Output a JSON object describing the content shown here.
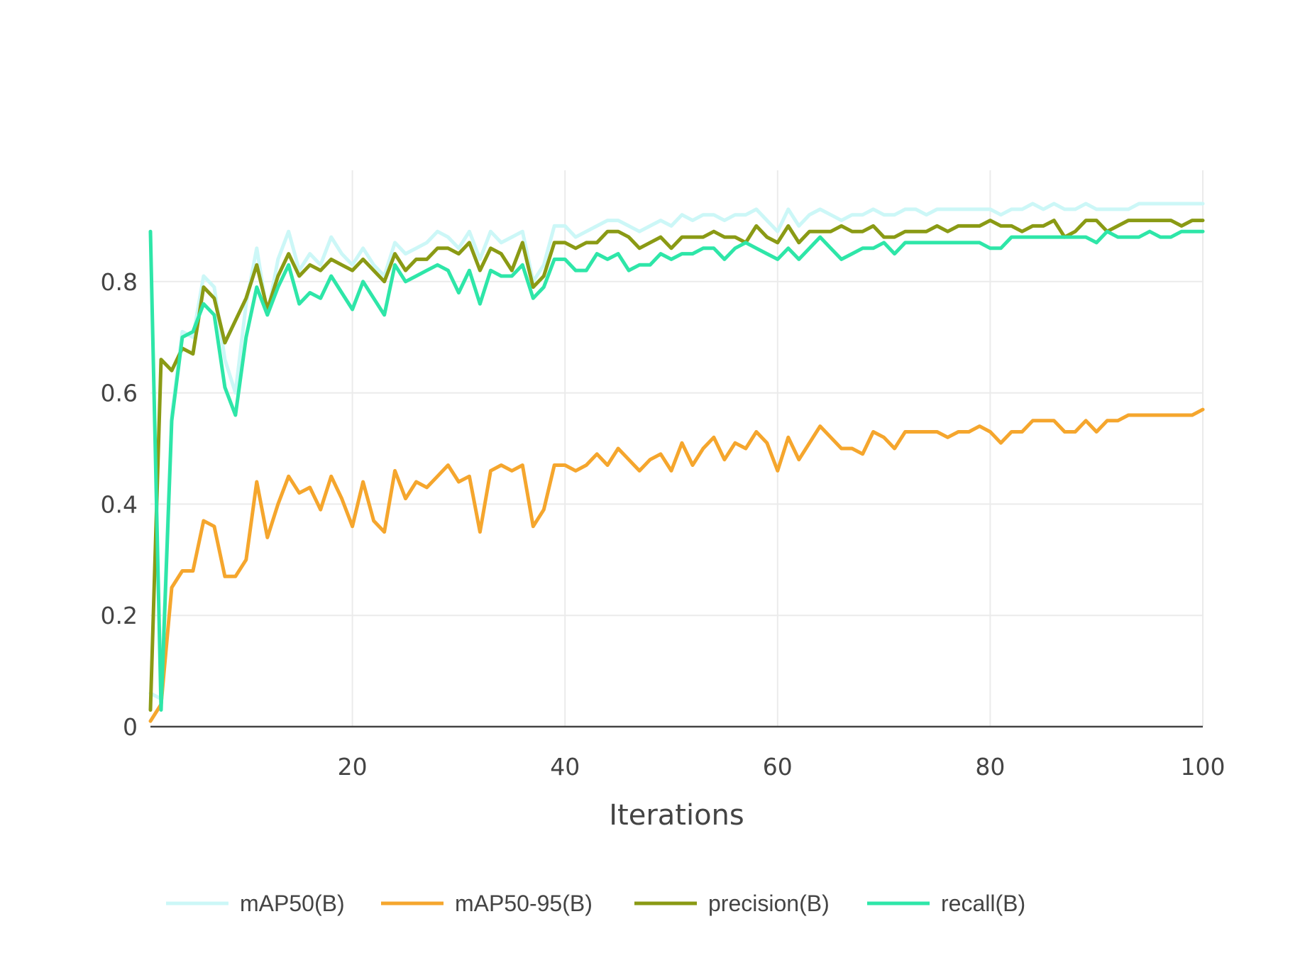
{
  "chart_data": {
    "type": "line",
    "title": "",
    "xlabel": "Iterations",
    "ylabel": "",
    "xlim": [
      1,
      100
    ],
    "ylim": [
      0,
      1.0
    ],
    "x_ticks": [
      20,
      40,
      60,
      80,
      100
    ],
    "y_ticks": [
      0,
      0.2,
      0.4,
      0.6,
      0.8
    ],
    "y_tick_labels": [
      "0",
      "0.2",
      "0.4",
      "0.6",
      "0.8"
    ],
    "x_tick_labels": [
      "20",
      "40",
      "60",
      "80",
      "100"
    ],
    "grid": true,
    "legend_position": "bottom",
    "x": [
      1,
      2,
      3,
      4,
      5,
      6,
      7,
      8,
      9,
      10,
      11,
      12,
      13,
      14,
      15,
      16,
      17,
      18,
      19,
      20,
      21,
      22,
      23,
      24,
      25,
      26,
      27,
      28,
      29,
      30,
      31,
      32,
      33,
      34,
      35,
      36,
      37,
      38,
      39,
      40,
      41,
      42,
      43,
      44,
      45,
      46,
      47,
      48,
      49,
      50,
      51,
      52,
      53,
      54,
      55,
      56,
      57,
      58,
      59,
      60,
      61,
      62,
      63,
      64,
      65,
      66,
      67,
      68,
      69,
      70,
      71,
      72,
      73,
      74,
      75,
      76,
      77,
      78,
      79,
      80,
      81,
      82,
      83,
      84,
      85,
      86,
      87,
      88,
      89,
      90,
      91,
      92,
      93,
      94,
      95,
      96,
      97,
      98,
      99,
      100
    ],
    "series": [
      {
        "name": "mAP50(B)",
        "color": "#ccf7f7",
        "values": [
          0.06,
          0.05,
          0.56,
          0.71,
          0.7,
          0.81,
          0.79,
          0.66,
          0.6,
          0.76,
          0.86,
          0.74,
          0.84,
          0.89,
          0.82,
          0.85,
          0.83,
          0.88,
          0.85,
          0.83,
          0.86,
          0.83,
          0.81,
          0.87,
          0.85,
          0.86,
          0.87,
          0.89,
          0.88,
          0.86,
          0.89,
          0.84,
          0.89,
          0.87,
          0.88,
          0.89,
          0.8,
          0.83,
          0.9,
          0.9,
          0.88,
          0.89,
          0.9,
          0.91,
          0.91,
          0.9,
          0.89,
          0.9,
          0.91,
          0.9,
          0.92,
          0.91,
          0.92,
          0.92,
          0.91,
          0.92,
          0.92,
          0.93,
          0.91,
          0.89,
          0.93,
          0.9,
          0.92,
          0.93,
          0.92,
          0.91,
          0.92,
          0.92,
          0.93,
          0.92,
          0.92,
          0.93,
          0.93,
          0.92,
          0.93,
          0.93,
          0.93,
          0.93,
          0.93,
          0.93,
          0.92,
          0.93,
          0.93,
          0.94,
          0.93,
          0.94,
          0.93,
          0.93,
          0.94,
          0.93,
          0.93,
          0.93,
          0.93,
          0.94,
          0.94,
          0.94,
          0.94,
          0.94,
          0.94,
          0.94
        ]
      },
      {
        "name": "mAP50-95(B)",
        "color": "#f5a62d",
        "values": [
          0.01,
          0.04,
          0.25,
          0.28,
          0.28,
          0.37,
          0.36,
          0.27,
          0.27,
          0.3,
          0.44,
          0.34,
          0.4,
          0.45,
          0.42,
          0.43,
          0.39,
          0.45,
          0.41,
          0.36,
          0.44,
          0.37,
          0.35,
          0.46,
          0.41,
          0.44,
          0.43,
          0.45,
          0.47,
          0.44,
          0.45,
          0.35,
          0.46,
          0.47,
          0.46,
          0.47,
          0.36,
          0.39,
          0.47,
          0.47,
          0.46,
          0.47,
          0.49,
          0.47,
          0.5,
          0.48,
          0.46,
          0.48,
          0.49,
          0.46,
          0.51,
          0.47,
          0.5,
          0.52,
          0.48,
          0.51,
          0.5,
          0.53,
          0.51,
          0.46,
          0.52,
          0.48,
          0.51,
          0.54,
          0.52,
          0.5,
          0.5,
          0.49,
          0.53,
          0.52,
          0.5,
          0.53,
          0.53,
          0.53,
          0.53,
          0.52,
          0.53,
          0.53,
          0.54,
          0.53,
          0.51,
          0.53,
          0.53,
          0.55,
          0.55,
          0.55,
          0.53,
          0.53,
          0.55,
          0.53,
          0.55,
          0.55,
          0.56,
          0.56,
          0.56,
          0.56,
          0.56,
          0.56,
          0.56,
          0.57
        ]
      },
      {
        "name": "precision(B)",
        "color": "#8a9a14",
        "values": [
          0.03,
          0.66,
          0.64,
          0.68,
          0.67,
          0.79,
          0.77,
          0.69,
          0.73,
          0.77,
          0.83,
          0.75,
          0.81,
          0.85,
          0.81,
          0.83,
          0.82,
          0.84,
          0.83,
          0.82,
          0.84,
          0.82,
          0.8,
          0.85,
          0.82,
          0.84,
          0.84,
          0.86,
          0.86,
          0.85,
          0.87,
          0.82,
          0.86,
          0.85,
          0.82,
          0.87,
          0.79,
          0.81,
          0.87,
          0.87,
          0.86,
          0.87,
          0.87,
          0.89,
          0.89,
          0.88,
          0.86,
          0.87,
          0.88,
          0.86,
          0.88,
          0.88,
          0.88,
          0.89,
          0.88,
          0.88,
          0.87,
          0.9,
          0.88,
          0.87,
          0.9,
          0.87,
          0.89,
          0.89,
          0.89,
          0.9,
          0.89,
          0.89,
          0.9,
          0.88,
          0.88,
          0.89,
          0.89,
          0.89,
          0.9,
          0.89,
          0.9,
          0.9,
          0.9,
          0.91,
          0.9,
          0.9,
          0.89,
          0.9,
          0.9,
          0.91,
          0.88,
          0.89,
          0.91,
          0.91,
          0.89,
          0.9,
          0.91,
          0.91,
          0.91,
          0.91,
          0.91,
          0.9,
          0.91,
          0.91
        ]
      },
      {
        "name": "recall(B)",
        "color": "#2ee6a8",
        "values": [
          0.89,
          0.03,
          0.55,
          0.7,
          0.71,
          0.76,
          0.74,
          0.61,
          0.56,
          0.7,
          0.79,
          0.74,
          0.79,
          0.83,
          0.76,
          0.78,
          0.77,
          0.81,
          0.78,
          0.75,
          0.8,
          0.77,
          0.74,
          0.83,
          0.8,
          0.81,
          0.82,
          0.83,
          0.82,
          0.78,
          0.82,
          0.76,
          0.82,
          0.81,
          0.81,
          0.83,
          0.77,
          0.79,
          0.84,
          0.84,
          0.82,
          0.82,
          0.85,
          0.84,
          0.85,
          0.82,
          0.83,
          0.83,
          0.85,
          0.84,
          0.85,
          0.85,
          0.86,
          0.86,
          0.84,
          0.86,
          0.87,
          0.86,
          0.85,
          0.84,
          0.86,
          0.84,
          0.86,
          0.88,
          0.86,
          0.84,
          0.85,
          0.86,
          0.86,
          0.87,
          0.85,
          0.87,
          0.87,
          0.87,
          0.87,
          0.87,
          0.87,
          0.87,
          0.87,
          0.86,
          0.86,
          0.88,
          0.88,
          0.88,
          0.88,
          0.88,
          0.88,
          0.88,
          0.88,
          0.87,
          0.89,
          0.88,
          0.88,
          0.88,
          0.89,
          0.88,
          0.88,
          0.89,
          0.89,
          0.89
        ]
      }
    ]
  }
}
